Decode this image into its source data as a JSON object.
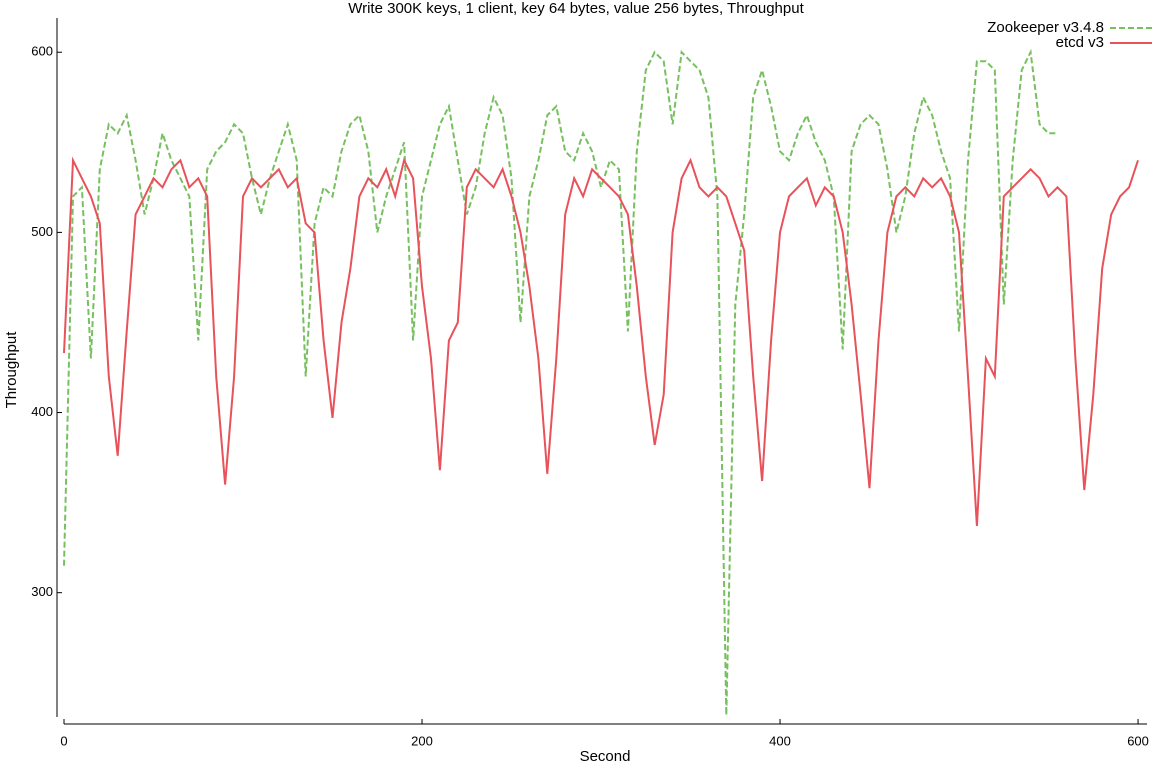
{
  "chart_data": {
    "type": "line",
    "title": "Write 300K keys, 1 client, key 64 bytes, value 256 bytes, Throughput",
    "x_label": "Second",
    "y_label": "Throughput",
    "xlim": [
      -4,
      605
    ],
    "ylim": [
      231,
      619
    ],
    "xticks": [
      0,
      200,
      400,
      600
    ],
    "yticks": [
      300,
      400,
      500,
      600
    ],
    "legend": "top-right",
    "x": [
      0,
      5,
      10,
      15,
      20,
      25,
      30,
      35,
      40,
      45,
      50,
      55,
      60,
      65,
      70,
      75,
      80,
      85,
      90,
      95,
      100,
      105,
      110,
      115,
      120,
      125,
      130,
      135,
      140,
      145,
      150,
      155,
      160,
      165,
      170,
      175,
      180,
      185,
      190,
      195,
      200,
      205,
      210,
      215,
      220,
      225,
      230,
      235,
      240,
      245,
      250,
      255,
      260,
      265,
      270,
      275,
      280,
      285,
      290,
      295,
      300,
      305,
      310,
      315,
      320,
      325,
      330,
      335,
      340,
      345,
      350,
      355,
      360,
      365,
      370,
      375,
      380,
      385,
      390,
      395,
      400,
      405,
      410,
      415,
      420,
      425,
      430,
      435,
      440,
      445,
      450,
      455,
      460,
      465,
      470,
      475,
      480,
      485,
      490,
      495,
      500,
      505,
      510,
      515,
      520,
      525,
      530,
      535,
      540,
      545,
      550,
      555,
      560,
      565,
      570,
      575,
      580,
      585,
      590,
      595,
      600
    ],
    "series": [
      {
        "name": "Zookeeper v3.4.8",
        "color": "#77c05f",
        "style": "dashed",
        "values": [
          315,
          520,
          525,
          430,
          535,
          560,
          555,
          565,
          540,
          510,
          530,
          555,
          540,
          530,
          520,
          440,
          535,
          545,
          550,
          560,
          555,
          530,
          510,
          530,
          545,
          560,
          540,
          420,
          505,
          525,
          520,
          545,
          560,
          565,
          545,
          500,
          520,
          535,
          550,
          440,
          520,
          540,
          560,
          570,
          540,
          510,
          525,
          555,
          575,
          565,
          530,
          450,
          520,
          540,
          565,
          570,
          545,
          540,
          555,
          545,
          525,
          540,
          535,
          445,
          545,
          590,
          600,
          595,
          560,
          600,
          595,
          590,
          575,
          520,
          232,
          460,
          510,
          575,
          590,
          570,
          545,
          540,
          555,
          565,
          550,
          540,
          520,
          435,
          545,
          560,
          565,
          560,
          535,
          500,
          520,
          555,
          575,
          565,
          545,
          530,
          445,
          540,
          595,
          595,
          590,
          460,
          540,
          590,
          600,
          560,
          555,
          555,
          null,
          null,
          null,
          null,
          null,
          null,
          null,
          null,
          null
        ]
      },
      {
        "name": "etcd v3",
        "color": "#e8525a",
        "style": "solid",
        "values": [
          433,
          540,
          530,
          520,
          505,
          420,
          376,
          445,
          510,
          520,
          530,
          525,
          535,
          540,
          525,
          530,
          520,
          420,
          360,
          420,
          520,
          530,
          525,
          530,
          535,
          525,
          530,
          505,
          500,
          440,
          397,
          450,
          480,
          520,
          530,
          525,
          535,
          520,
          540,
          530,
          470,
          430,
          368,
          440,
          450,
          525,
          535,
          530,
          525,
          535,
          520,
          500,
          470,
          430,
          366,
          430,
          510,
          530,
          520,
          535,
          530,
          525,
          520,
          510,
          470,
          420,
          382,
          410,
          500,
          530,
          540,
          525,
          520,
          525,
          520,
          505,
          490,
          420,
          362,
          440,
          500,
          520,
          525,
          530,
          515,
          525,
          520,
          500,
          460,
          410,
          358,
          440,
          500,
          520,
          525,
          520,
          530,
          525,
          530,
          520,
          500,
          420,
          337,
          430,
          420,
          520,
          525,
          530,
          535,
          530,
          520,
          525,
          520,
          430,
          357,
          410,
          480,
          510,
          520,
          525,
          540
        ]
      }
    ]
  }
}
